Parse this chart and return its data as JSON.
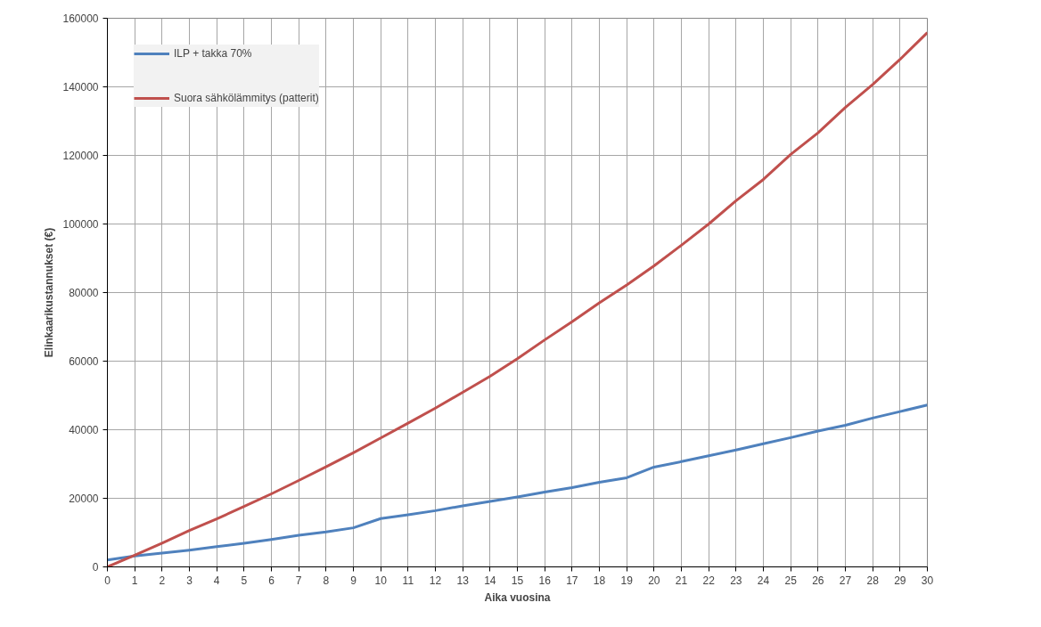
{
  "chart_data": {
    "type": "line",
    "xlabel": "Aika vuosina",
    "ylabel": "Elinkaarikustannukset (€)",
    "x": [
      0,
      1,
      2,
      3,
      4,
      5,
      6,
      7,
      8,
      9,
      10,
      11,
      12,
      13,
      14,
      15,
      16,
      17,
      18,
      19,
      20,
      21,
      22,
      23,
      24,
      25,
      26,
      27,
      28,
      29,
      30
    ],
    "series": [
      {
        "name": "ILP + takka 70%",
        "color": "#4f81bd",
        "values": [
          2000,
          3200,
          4000,
          4900,
          5900,
          6900,
          8000,
          9200,
          10200,
          11400,
          14100,
          15200,
          16400,
          17800,
          19100,
          20400,
          21800,
          23100,
          24700,
          26000,
          29100,
          30700,
          32400,
          34100,
          35900,
          37700,
          39600,
          41300,
          43400,
          45300,
          47200
        ]
      },
      {
        "name": "Suora sähkölämmitys (patterit)",
        "color": "#c0504d",
        "values": [
          0,
          3400,
          6900,
          10600,
          14000,
          17600,
          21300,
          25200,
          29200,
          33300,
          37600,
          41900,
          46300,
          50900,
          55600,
          60700,
          66200,
          71500,
          77000,
          82200,
          87800,
          93800,
          100000,
          106800,
          113000,
          120300,
          126600,
          134000,
          140700,
          148000,
          155800
        ]
      }
    ],
    "xlim": [
      0,
      30
    ],
    "xticks": [
      0,
      1,
      2,
      3,
      4,
      5,
      6,
      7,
      8,
      9,
      10,
      11,
      12,
      13,
      14,
      15,
      16,
      17,
      18,
      19,
      20,
      21,
      22,
      23,
      24,
      25,
      26,
      27,
      28,
      29,
      30
    ],
    "ylim": [
      0,
      160000
    ],
    "yticks": [
      0,
      20000,
      40000,
      60000,
      80000,
      100000,
      120000,
      140000,
      160000
    ],
    "grid": true,
    "legend": "top left",
    "marker": "none",
    "line_style": "solid"
  }
}
